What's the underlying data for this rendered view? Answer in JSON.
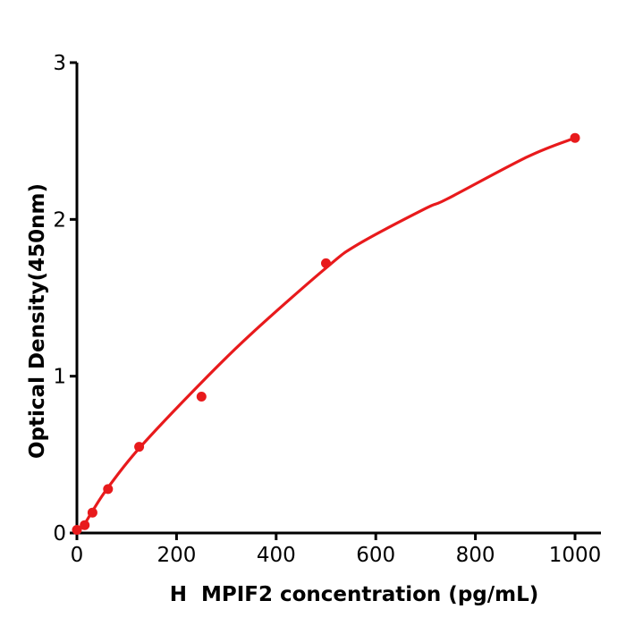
{
  "figure": {
    "background_color": "#ffffff"
  },
  "chart_data": {
    "type": "scatter",
    "subtype": "scatter-with-fit-line",
    "title": "",
    "xlabel": "H  MPIF2 concentration (pg/mL)",
    "ylabel": "Optical Density(450nm)",
    "x_ticks": [
      0,
      200,
      400,
      600,
      800,
      1000
    ],
    "y_ticks": [
      0,
      1,
      2,
      3
    ],
    "xlim": [
      0,
      1053
    ],
    "ylim": [
      0,
      3
    ],
    "grid": false,
    "legend_position": "none",
    "marker_color": "#e81a1c",
    "line_color": "#e81a1c",
    "axis_color": "#000000",
    "tick_label_color": "#000000",
    "background_color": "#ffffff",
    "points": [
      {
        "x": 0,
        "od": 0.02
      },
      {
        "x": 15.6,
        "od": 0.05
      },
      {
        "x": 31.2,
        "od": 0.13
      },
      {
        "x": 62.5,
        "od": 0.28
      },
      {
        "x": 125,
        "od": 0.55
      },
      {
        "x": 250,
        "od": 0.87
      },
      {
        "x": 500,
        "od": 1.72
      },
      {
        "x": 1000,
        "od": 2.52
      }
    ],
    "fit_curve": [
      {
        "x": 0,
        "od": 0.01
      },
      {
        "x": 15.6,
        "od": 0.06
      },
      {
        "x": 31.2,
        "od": 0.14
      },
      {
        "x": 62.5,
        "od": 0.29
      },
      {
        "x": 125,
        "od": 0.54
      },
      {
        "x": 250,
        "od": 0.96
      },
      {
        "x": 350,
        "od": 1.27
      },
      {
        "x": 500,
        "od": 1.69
      },
      {
        "x": 564,
        "od": 1.84
      },
      {
        "x": 700,
        "od": 2.07
      },
      {
        "x": 743,
        "od": 2.13
      },
      {
        "x": 905,
        "od": 2.4
      },
      {
        "x": 1000,
        "od": 2.52
      }
    ]
  }
}
